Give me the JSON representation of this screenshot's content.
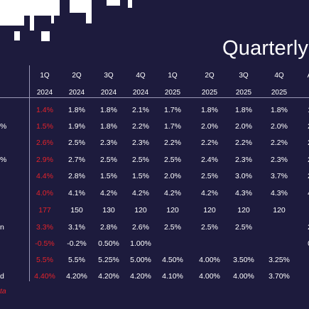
{
  "title": "Quarterly",
  "columns": [
    {
      "q": "1Q",
      "year": "2024"
    },
    {
      "q": "2Q",
      "year": "2024"
    },
    {
      "q": "3Q",
      "year": "2024"
    },
    {
      "q": "4Q",
      "year": "2024"
    },
    {
      "q": "1Q",
      "year": "2025"
    },
    {
      "q": "2Q",
      "year": "2025"
    },
    {
      "q": "3Q",
      "year": "2025"
    },
    {
      "q": "4Q",
      "year": "2025"
    },
    {
      "q": "A",
      "year": ""
    }
  ],
  "row_labels": [
    "",
    "%",
    "",
    "%",
    "",
    "",
    "",
    "n",
    "",
    "",
    "d",
    ""
  ],
  "rows": [
    [
      "1.4%",
      "1.8%",
      "1.8%",
      "2.1%",
      "1.7%",
      "1.8%",
      "1.8%",
      "1.8%",
      "1"
    ],
    [
      "1.5%",
      "1.9%",
      "1.8%",
      "2.2%",
      "1.7%",
      "2.0%",
      "2.0%",
      "2.0%",
      "2"
    ],
    [
      "2.6%",
      "2.5%",
      "2.3%",
      "2.3%",
      "2.2%",
      "2.2%",
      "2.2%",
      "2.2%",
      "2"
    ],
    [
      "2.9%",
      "2.7%",
      "2.5%",
      "2.5%",
      "2.5%",
      "2.4%",
      "2.3%",
      "2.3%",
      "2"
    ],
    [
      "4.4%",
      "2.8%",
      "1.5%",
      "1.5%",
      "2.0%",
      "2.5%",
      "3.0%",
      "3.7%",
      "2"
    ],
    [
      "4.0%",
      "4.1%",
      "4.2%",
      "4.2%",
      "4.2%",
      "4.2%",
      "4.3%",
      "4.3%",
      "4"
    ],
    [
      "177",
      "150",
      "130",
      "120",
      "120",
      "120",
      "120",
      "120",
      ""
    ],
    [
      "3.3%",
      "3.1%",
      "2.8%",
      "2.6%",
      "2.5%",
      "2.5%",
      "2.5%",
      "",
      "2"
    ],
    [
      "-0.5%",
      "-0.2%",
      "0.50%",
      "1.00%",
      "",
      "",
      "",
      "",
      "0"
    ],
    [
      "5.5%",
      "5.5%",
      "5.25%",
      "5.00%",
      "4.50%",
      "4.00%",
      "3.50%",
      "3.25%",
      ""
    ],
    [
      "4.40%",
      "4.20%",
      "4.20%",
      "4.20%",
      "4.10%",
      "4.00%",
      "4.00%",
      "3.70%",
      ""
    ]
  ],
  "footnote": "ta",
  "colors": {
    "background": "#1d1b3d",
    "text": "#ffffff",
    "actual": "#e5232a",
    "rule": "#9a98b6"
  }
}
